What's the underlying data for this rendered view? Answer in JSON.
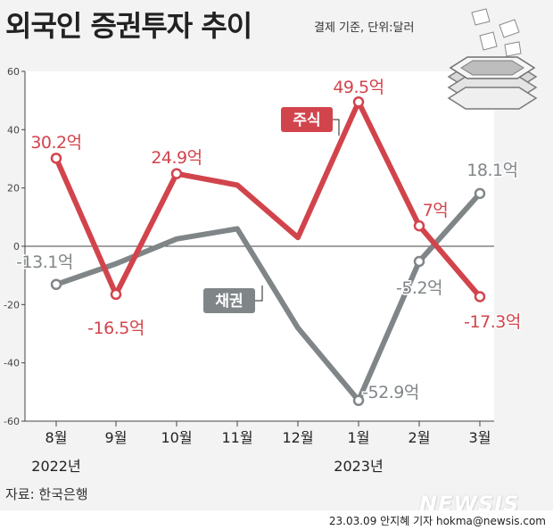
{
  "header": {
    "title": "외국인 증권투자 추이",
    "subtitle": "결제 기준, 단위:달러"
  },
  "footer": {
    "source": "자료: 한국은행",
    "brand": "NEWSIS",
    "credit": "23.03.09 안지혜 기자 hokma@newsis.com"
  },
  "colors": {
    "stock": "#d2444c",
    "bond": "#808688",
    "plot_bg": "#ffffff",
    "page_bg": "#f3f3f3"
  },
  "chart_data": {
    "type": "line",
    "title": "외국인 증권투자 추이",
    "subtitle": "결제 기준, 단위:달러",
    "categories": [
      "8월",
      "9월",
      "10월",
      "11월",
      "12월",
      "1월",
      "2월",
      "3월"
    ],
    "year_labels": [
      {
        "text": "2022년",
        "category_index": 0
      },
      {
        "text": "2023년",
        "category_index": 5
      }
    ],
    "ylim": [
      -60,
      60
    ],
    "yticks": [
      60,
      40,
      20,
      0,
      -20,
      -40,
      -60
    ],
    "ytick_labels": [
      "60",
      "40",
      "20",
      "0",
      "-20",
      "-40",
      "-60"
    ],
    "grid": false,
    "series": [
      {
        "name": "주식",
        "color": "#d2444c",
        "values": [
          30.2,
          -16.5,
          24.9,
          21,
          3,
          49.5,
          7,
          -17.3
        ],
        "labels": [
          "30.2억",
          "-16.5억",
          "24.9억",
          "",
          "",
          "49.5억",
          "7억",
          "-17.3억"
        ]
      },
      {
        "name": "채권",
        "color": "#808688",
        "values": [
          -13.1,
          -6,
          2.5,
          6,
          -28,
          -52.9,
          -5.2,
          18.1
        ],
        "labels": [
          "-13.1억",
          "",
          "",
          "",
          "",
          "-52.9억",
          "-5.2억",
          "18.1억"
        ]
      }
    ]
  }
}
